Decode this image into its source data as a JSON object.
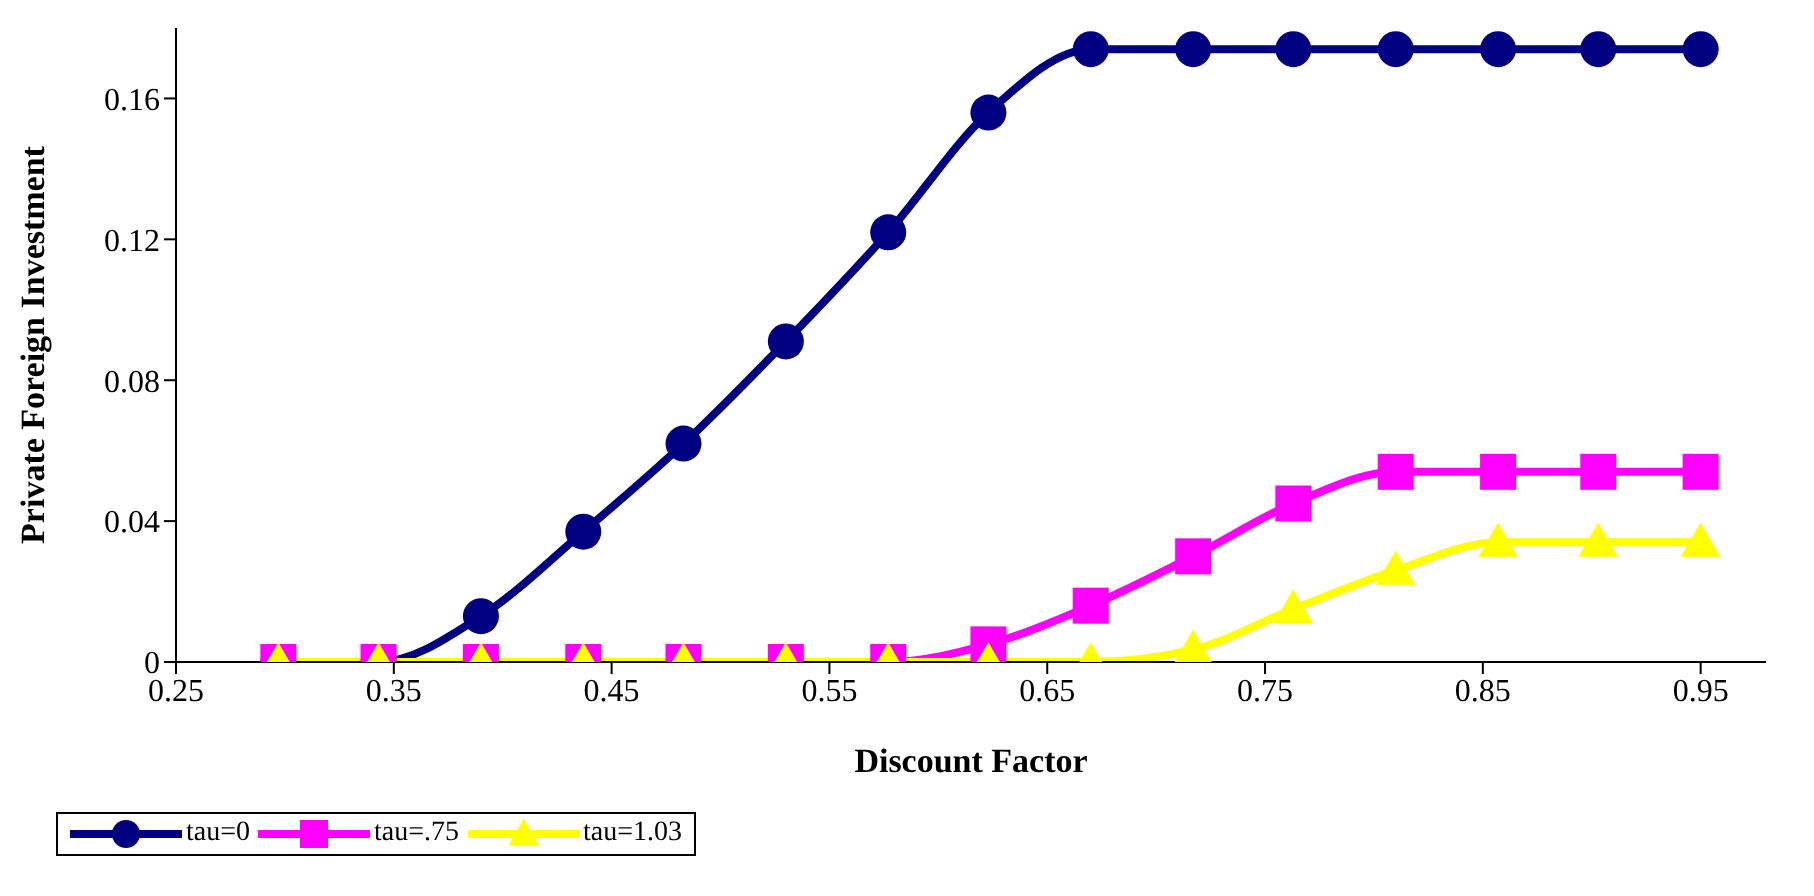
{
  "chart_data": {
    "type": "line",
    "xlabel": "Discount Factor",
    "ylabel": "Private Foreign Investment",
    "xlim": [
      0.25,
      0.98
    ],
    "xticks": [
      0.25,
      0.35,
      0.45,
      0.55,
      0.65,
      0.75,
      0.85,
      0.95
    ],
    "ylim": [
      0,
      0.18
    ],
    "yticks": [
      0,
      0.04,
      0.08,
      0.12,
      0.16
    ],
    "x": [
      0.297,
      0.343,
      0.39,
      0.437,
      0.483,
      0.53,
      0.577,
      0.623,
      0.67,
      0.717,
      0.763,
      0.81,
      0.857,
      0.903,
      0.95
    ],
    "grid": false,
    "legend": "bottom",
    "series": [
      {
        "name": "tau=0",
        "color": "#000080",
        "marker": "circle",
        "values": [
          0,
          0,
          0.013,
          0.037,
          0.062,
          0.091,
          0.122,
          0.156,
          0.174,
          0.174,
          0.174,
          0.174,
          0.174,
          0.174,
          0.174
        ]
      },
      {
        "name": "tau=.75",
        "color": "#ff00ff",
        "marker": "square",
        "values": [
          0,
          0,
          0,
          0,
          0,
          0,
          0,
          0.005,
          0.016,
          0.03,
          0.045,
          0.054,
          0.054,
          0.054,
          0.054
        ]
      },
      {
        "name": "tau=1.03",
        "color": "#ffff00",
        "marker": "triangle",
        "values": [
          0,
          0,
          0,
          0,
          0,
          0,
          0,
          0,
          0,
          0.0035,
          0.015,
          0.026,
          0.034,
          0.034,
          0.034
        ]
      }
    ]
  }
}
